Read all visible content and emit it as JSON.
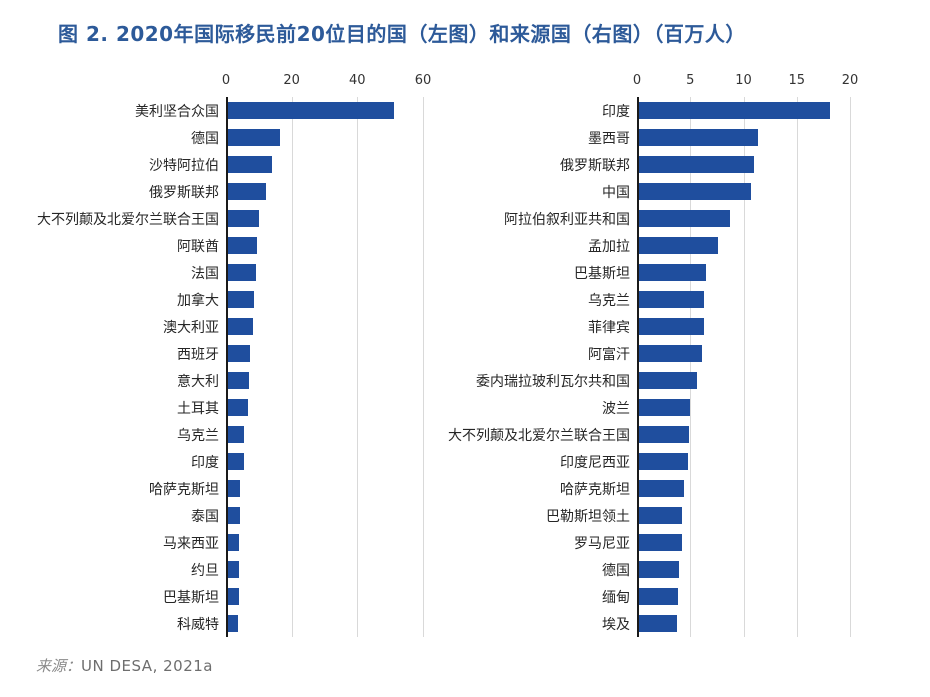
{
  "title": "图 2. 2020年国际移民前20位目的国（左图）和来源国（右图）（百万人）",
  "source": {
    "prefix": "来源：",
    "text": "UN DESA, 2021a"
  },
  "colors": {
    "bar": "#1f4e9e",
    "title": "#2d5a99",
    "gridline": "#d9d9d9",
    "axis_line": "#1a1a1a",
    "tick_label": "#333333",
    "category_label": "#262626",
    "source_text": "#808080"
  },
  "chart_data": [
    {
      "type": "bar",
      "orientation": "horizontal",
      "panel": "左图",
      "title": "2020年国际移民前20位目的国",
      "unit": "百万人",
      "xlim": [
        0,
        60
      ],
      "ticks": [
        0,
        20,
        40,
        60
      ],
      "grid": true,
      "categories": [
        "美利坚合众国",
        "德国",
        "沙特阿拉伯",
        "俄罗斯联邦",
        "大不列颠及北爱尔兰联合王国",
        "阿联酋",
        "法国",
        "加拿大",
        "澳大利亚",
        "西班牙",
        "意大利",
        "土耳其",
        "乌克兰",
        "印度",
        "哈萨克斯坦",
        "泰国",
        "马来西亚",
        "约旦",
        "巴基斯坦",
        "科威特"
      ],
      "values": [
        50.6,
        15.8,
        13.5,
        11.6,
        9.4,
        8.7,
        8.5,
        8.0,
        7.7,
        6.8,
        6.4,
        6.0,
        5.0,
        4.9,
        3.7,
        3.6,
        3.5,
        3.4,
        3.3,
        3.1
      ]
    },
    {
      "type": "bar",
      "orientation": "horizontal",
      "panel": "右图",
      "title": "2020年国际移民前20位来源国",
      "unit": "百万人",
      "xlim": [
        0,
        20
      ],
      "ticks": [
        0,
        5,
        10,
        15,
        20
      ],
      "grid": true,
      "categories": [
        "印度",
        "墨西哥",
        "俄罗斯联邦",
        "中国",
        "阿拉伯叙利亚共和国",
        "孟加拉",
        "巴基斯坦",
        "乌克兰",
        "菲律宾",
        "阿富汗",
        "委内瑞拉玻利瓦尔共和国",
        "波兰",
        "大不列颠及北爱尔兰联合王国",
        "印度尼西亚",
        "哈萨克斯坦",
        "巴勒斯坦领土",
        "罗马尼亚",
        "德国",
        "缅甸",
        "埃及"
      ],
      "values": [
        17.9,
        11.2,
        10.8,
        10.5,
        8.5,
        7.4,
        6.3,
        6.1,
        6.1,
        5.9,
        5.4,
        4.8,
        4.7,
        4.6,
        4.2,
        4.0,
        4.0,
        3.8,
        3.7,
        3.6
      ]
    }
  ]
}
